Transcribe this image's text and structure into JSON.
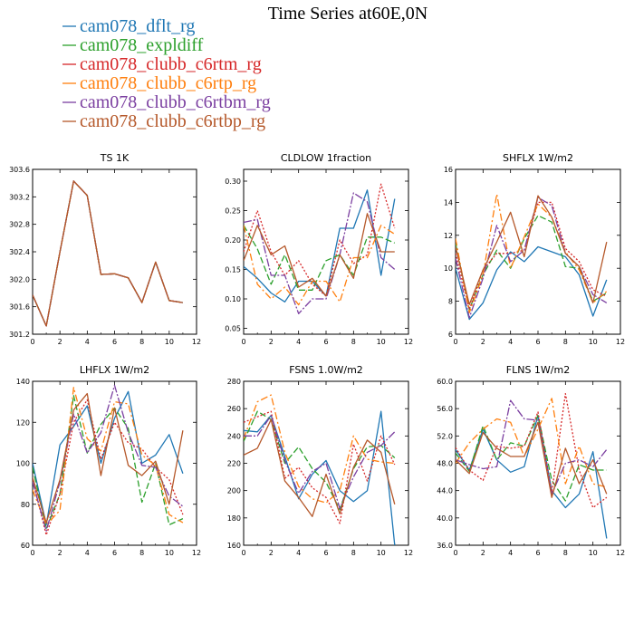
{
  "title": "Time Series at60E,0N",
  "colors": {
    "cam078_dflt_rg": "#1f77b4",
    "cam078_expldiff": "#2ca02c",
    "cam078_clubb_c6rtm_rg": "#d62728",
    "cam078_clubb_c6rtp_rg": "#ff7f0e",
    "cam078_clubb_c6rtbm_rg": "#7b3fa0",
    "cam078_clubb_c6rtbp_rg": "#b5582a"
  },
  "legend": [
    {
      "name": "cam078_dflt_rg",
      "dash": "none"
    },
    {
      "name": "cam078_expldiff",
      "dash": "7,3"
    },
    {
      "name": "cam078_clubb_c6rtm_rg",
      "dash": "2,2"
    },
    {
      "name": "cam078_clubb_c6rtp_rg",
      "dash": "8,3,2,3"
    },
    {
      "name": "cam078_clubb_c6rtbm_rg",
      "dash": "9,2,2,2"
    },
    {
      "name": "cam078_clubb_c6rtbp_rg",
      "dash": "none"
    }
  ],
  "chart_data": [
    {
      "type": "line",
      "title": "TS   1K",
      "xlim": [
        0,
        12
      ],
      "ylim": [
        301.2,
        303.6
      ],
      "xticks": [
        "0",
        "2",
        "4",
        "6",
        "8",
        "10",
        "12"
      ],
      "yticks": [
        "301.2",
        "301.6",
        "302.0",
        "302.4",
        "302.8",
        "303.2",
        "303.6"
      ],
      "x": [
        0,
        1,
        2,
        3,
        4,
        5,
        6,
        7,
        8,
        9,
        10,
        11
      ],
      "series": [
        {
          "name": "cam078_dflt_rg",
          "values": [
            301.77,
            301.32,
            302.4,
            303.43,
            303.22,
            302.07,
            302.08,
            302.02,
            301.66,
            302.25,
            301.69,
            301.66
          ]
        },
        {
          "name": "cam078_expldiff",
          "values": [
            301.77,
            301.32,
            302.4,
            303.43,
            303.22,
            302.07,
            302.08,
            302.02,
            301.66,
            302.25,
            301.69,
            301.66
          ]
        },
        {
          "name": "cam078_clubb_c6rtm_rg",
          "values": [
            301.77,
            301.32,
            302.4,
            303.43,
            303.22,
            302.07,
            302.08,
            302.02,
            301.66,
            302.25,
            301.69,
            301.66
          ]
        },
        {
          "name": "cam078_clubb_c6rtp_rg",
          "values": [
            301.77,
            301.32,
            302.4,
            303.43,
            303.22,
            302.07,
            302.08,
            302.02,
            301.66,
            302.25,
            301.69,
            301.66
          ]
        },
        {
          "name": "cam078_clubb_c6rtbm_rg",
          "values": [
            301.77,
            301.32,
            302.4,
            303.43,
            303.22,
            302.07,
            302.08,
            302.02,
            301.66,
            302.25,
            301.69,
            301.66
          ]
        },
        {
          "name": "cam078_clubb_c6rtbp_rg",
          "values": [
            301.77,
            301.32,
            302.4,
            303.43,
            303.22,
            302.07,
            302.08,
            302.02,
            301.66,
            302.25,
            301.69,
            301.66
          ]
        }
      ]
    },
    {
      "type": "line",
      "title": "CLDLOW   1fraction",
      "xlim": [
        0,
        12
      ],
      "ylim": [
        0.04,
        0.32
      ],
      "xticks": [
        "0",
        "2",
        "4",
        "6",
        "8",
        "10",
        "12"
      ],
      "yticks": [
        "0.05",
        "0.10",
        "0.15",
        "0.20",
        "0.25",
        "0.30"
      ],
      "ytick_values": [
        0.05,
        0.1,
        0.15,
        0.2,
        0.25,
        0.3
      ],
      "x": [
        0,
        1,
        2,
        3,
        4,
        5,
        6,
        7,
        8,
        9,
        10,
        11
      ],
      "series": [
        {
          "name": "cam078_dflt_rg",
          "values": [
            0.155,
            0.135,
            0.11,
            0.095,
            0.13,
            0.13,
            0.105,
            0.22,
            0.22,
            0.285,
            0.14,
            0.27
          ]
        },
        {
          "name": "cam078_expldiff",
          "values": [
            0.225,
            0.185,
            0.125,
            0.175,
            0.115,
            0.115,
            0.165,
            0.175,
            0.14,
            0.205,
            0.205,
            0.195
          ]
        },
        {
          "name": "cam078_clubb_c6rtm_rg",
          "values": [
            0.18,
            0.25,
            0.18,
            0.14,
            0.165,
            0.125,
            0.105,
            0.2,
            0.16,
            0.175,
            0.295,
            0.22
          ]
        },
        {
          "name": "cam078_clubb_c6rtp_rg",
          "values": [
            0.225,
            0.125,
            0.1,
            0.12,
            0.09,
            0.13,
            0.13,
            0.095,
            0.17,
            0.17,
            0.225,
            0.21
          ]
        },
        {
          "name": "cam078_clubb_c6rtbm_rg",
          "values": [
            0.23,
            0.235,
            0.14,
            0.14,
            0.075,
            0.1,
            0.1,
            0.175,
            0.28,
            0.265,
            0.17,
            0.15
          ]
        },
        {
          "name": "cam078_clubb_c6rtbp_rg",
          "values": [
            0.165,
            0.225,
            0.175,
            0.19,
            0.12,
            0.135,
            0.105,
            0.175,
            0.135,
            0.245,
            0.18,
            0.18
          ]
        }
      ]
    },
    {
      "type": "line",
      "title": "SHFLX   1W/m2",
      "xlim": [
        0,
        12
      ],
      "ylim": [
        6,
        16
      ],
      "xticks": [
        "0",
        "2",
        "4",
        "6",
        "8",
        "10",
        "12"
      ],
      "yticks": [
        "6",
        "8",
        "10",
        "12",
        "14",
        "16"
      ],
      "x": [
        0,
        1,
        2,
        3,
        4,
        5,
        6,
        7,
        8,
        9,
        10,
        11
      ],
      "series": [
        {
          "name": "cam078_dflt_rg",
          "values": [
            10.0,
            6.9,
            7.9,
            9.9,
            11.0,
            10.4,
            11.3,
            11.0,
            10.7,
            9.6,
            7.1,
            9.3
          ]
        },
        {
          "name": "cam078_expldiff",
          "values": [
            11.5,
            7.5,
            9.6,
            11.1,
            10.0,
            11.8,
            13.2,
            12.8,
            10.1,
            10.0,
            8.0,
            8.5
          ]
        },
        {
          "name": "cam078_clubb_c6rtm_rg",
          "values": [
            10.9,
            7.5,
            9.9,
            10.9,
            10.9,
            11.1,
            14.0,
            14.0,
            11.2,
            10.4,
            8.7,
            8.3
          ]
        },
        {
          "name": "cam078_clubb_c6rtp_rg",
          "values": [
            11.8,
            7.3,
            9.6,
            14.5,
            10.0,
            11.9,
            13.9,
            13.1,
            11.0,
            9.9,
            7.9,
            8.6
          ]
        },
        {
          "name": "cam078_clubb_c6rtbm_rg",
          "values": [
            10.6,
            7.0,
            9.4,
            12.6,
            10.4,
            11.1,
            14.3,
            13.8,
            10.9,
            10.1,
            8.4,
            7.9
          ]
        },
        {
          "name": "cam078_clubb_c6rtbp_rg",
          "values": [
            11.3,
            7.8,
            9.9,
            11.6,
            13.4,
            10.7,
            14.4,
            13.1,
            10.9,
            10.1,
            7.9,
            11.6
          ]
        }
      ]
    },
    {
      "type": "line",
      "title": "LHFLX   1W/m2",
      "xlim": [
        0,
        12
      ],
      "ylim": [
        60,
        140
      ],
      "xticks": [
        "0",
        "2",
        "4",
        "6",
        "8",
        "10",
        "12"
      ],
      "yticks": [
        "60",
        "80",
        "100",
        "120",
        "140"
      ],
      "x": [
        0,
        1,
        2,
        3,
        4,
        5,
        6,
        7,
        8,
        9,
        10,
        11
      ],
      "series": [
        {
          "name": "cam078_dflt_rg",
          "values": [
            100,
            70,
            109,
            118,
            128,
            100,
            122,
            135,
            100,
            104,
            114,
            95
          ]
        },
        {
          "name": "cam078_expldiff",
          "values": [
            98,
            68,
            85,
            133,
            105,
            119,
            127,
            117,
            81,
            100,
            70,
            73
          ]
        },
        {
          "name": "cam078_clubb_c6rtm_rg",
          "values": [
            92,
            65,
            85,
            120,
            131,
            102,
            120,
            110,
            107,
            98,
            92,
            75
          ]
        },
        {
          "name": "cam078_clubb_c6rtp_rg",
          "values": [
            87,
            70,
            77,
            137,
            112,
            106,
            130,
            129,
            104,
            99,
            75,
            71
          ]
        },
        {
          "name": "cam078_clubb_c6rtbm_rg",
          "values": [
            91,
            67,
            91,
            124,
            105,
            115,
            138,
            115,
            99,
            98,
            84,
            79
          ]
        },
        {
          "name": "cam078_clubb_c6rtbp_rg",
          "values": [
            93,
            71,
            92,
            126,
            134,
            94,
            127,
            99,
            94,
            101,
            80,
            116
          ]
        }
      ]
    },
    {
      "type": "line",
      "title": "FSNS   1.0W/m2",
      "xlim": [
        0,
        12
      ],
      "ylim": [
        160,
        280
      ],
      "xticks": [
        "0",
        "2",
        "4",
        "6",
        "8",
        "10",
        "12"
      ],
      "yticks": [
        "160",
        "180",
        "200",
        "220",
        "240",
        "260",
        "280"
      ],
      "x": [
        0,
        1,
        2,
        3,
        4,
        5,
        6,
        7,
        8,
        9,
        10,
        11
      ],
      "series": [
        {
          "name": "cam078_dflt_rg",
          "values": [
            244,
            243,
            255,
            225,
            194,
            212,
            222,
            200,
            192,
            200,
            258,
            160
          ]
        },
        {
          "name": "cam078_expldiff",
          "values": [
            236,
            258,
            252,
            220,
            232,
            216,
            206,
            186,
            216,
            232,
            233,
            224
          ]
        },
        {
          "name": "cam078_clubb_c6rtm_rg",
          "values": [
            250,
            254,
            258,
            209,
            217,
            202,
            195,
            176,
            234,
            207,
            240,
            219
          ]
        },
        {
          "name": "cam078_clubb_c6rtp_rg",
          "values": [
            238,
            265,
            270,
            228,
            203,
            194,
            191,
            200,
            240,
            223,
            221,
            220
          ]
        },
        {
          "name": "cam078_clubb_c6rtbm_rg",
          "values": [
            240,
            240,
            255,
            222,
            198,
            214,
            220,
            187,
            210,
            228,
            233,
            243
          ]
        },
        {
          "name": "cam078_clubb_c6rtbp_rg",
          "values": [
            226,
            231,
            252,
            207,
            195,
            181,
            212,
            183,
            217,
            237,
            228,
            190
          ]
        }
      ]
    },
    {
      "type": "line",
      "title": "FLNS   1W/m2",
      "xlim": [
        0,
        12
      ],
      "ylim": [
        36,
        60
      ],
      "xticks": [
        "0",
        "2",
        "4",
        "6",
        "8",
        "10",
        "12"
      ],
      "yticks": [
        "36.0",
        "40.0",
        "44.0",
        "48.0",
        "52.0",
        "56.0",
        "60.0"
      ],
      "ytick_values": [
        36,
        40,
        44,
        48,
        52,
        56,
        60
      ],
      "x": [
        0,
        1,
        2,
        3,
        4,
        5,
        6,
        7,
        8,
        9,
        10,
        11
      ],
      "series": [
        {
          "name": "cam078_dflt_rg",
          "values": [
            50.0,
            47.0,
            53.0,
            48.5,
            46.7,
            47.5,
            55.0,
            44.0,
            41.5,
            43.5,
            49.7,
            37.0
          ]
        },
        {
          "name": "cam078_expldiff",
          "values": [
            49.5,
            46.8,
            53.5,
            48.5,
            51.0,
            50.5,
            55.0,
            45.5,
            42.5,
            47.8,
            47.0,
            47.0
          ]
        },
        {
          "name": "cam078_clubb_c6rtm_rg",
          "values": [
            50.3,
            47.0,
            45.5,
            50.5,
            50.2,
            50.5,
            55.5,
            43.7,
            58.2,
            47.0,
            41.5,
            43.0
          ]
        },
        {
          "name": "cam078_clubb_c6rtp_rg",
          "values": [
            48.0,
            51.0,
            53.0,
            54.5,
            54.0,
            49.0,
            53.0,
            57.5,
            45.0,
            50.5,
            45.0,
            44.5
          ]
        },
        {
          "name": "cam078_clubb_c6rtbm_rg",
          "values": [
            48.5,
            47.8,
            47.2,
            47.5,
            57.2,
            54.5,
            54.3,
            43.5,
            48.0,
            48.5,
            47.5,
            50.0
          ]
        },
        {
          "name": "cam078_clubb_c6rtbp_rg",
          "values": [
            48.5,
            46.5,
            52.5,
            50.2,
            49.0,
            49.0,
            54.0,
            43.0,
            50.2,
            45.0,
            48.5,
            43.5
          ]
        }
      ]
    }
  ]
}
